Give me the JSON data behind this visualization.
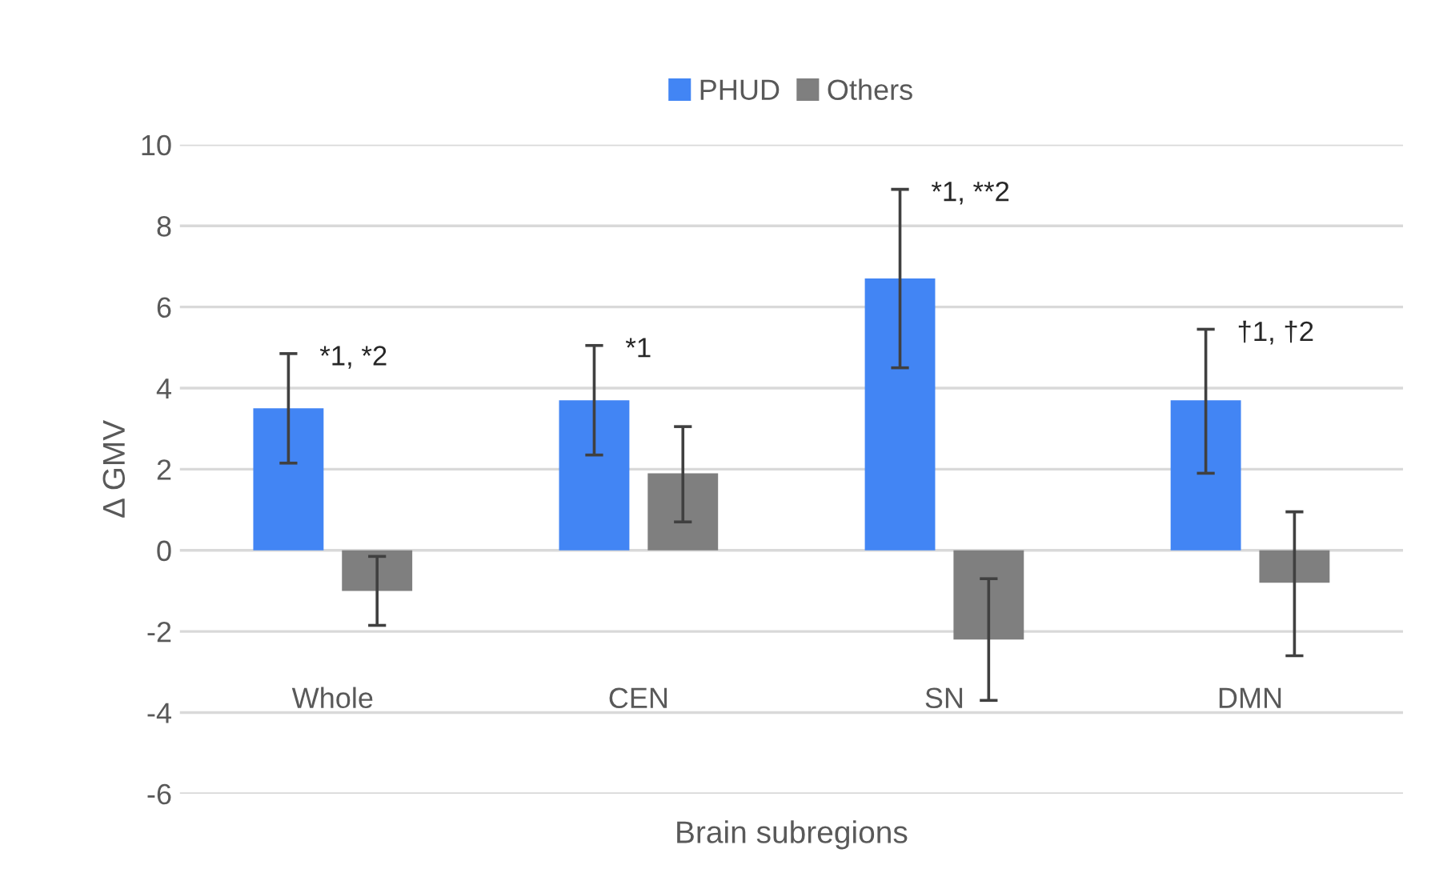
{
  "chart_data": {
    "type": "bar",
    "xlabel": "Brain subregions",
    "ylabel": "Δ GMV",
    "categories": [
      "Whole",
      "CEN",
      "SN",
      "DMN"
    ],
    "series": [
      {
        "name": "PHUD",
        "color": "#4285f4",
        "values": [
          3.5,
          3.7,
          6.7,
          3.7
        ],
        "errors": [
          [
            2.15,
            4.85
          ],
          [
            2.35,
            5.05
          ],
          [
            4.5,
            8.9
          ],
          [
            1.9,
            5.45
          ]
        ]
      },
      {
        "name": "Others",
        "color": "#7f7f7f",
        "values": [
          -1.0,
          1.9,
          -2.2,
          -0.8
        ],
        "errors": [
          [
            -1.85,
            -0.15
          ],
          [
            0.7,
            3.05
          ],
          [
            -3.7,
            -0.7
          ],
          [
            -2.6,
            0.95
          ]
        ]
      }
    ],
    "ylim": [
      -6,
      10
    ],
    "yticks": [
      -6,
      -4,
      -2,
      0,
      2,
      4,
      6,
      8,
      10
    ],
    "grid": "y",
    "legend": "top",
    "annotations": [
      "*1, *2",
      "*1",
      "*1, **2",
      "†1, †2"
    ]
  }
}
